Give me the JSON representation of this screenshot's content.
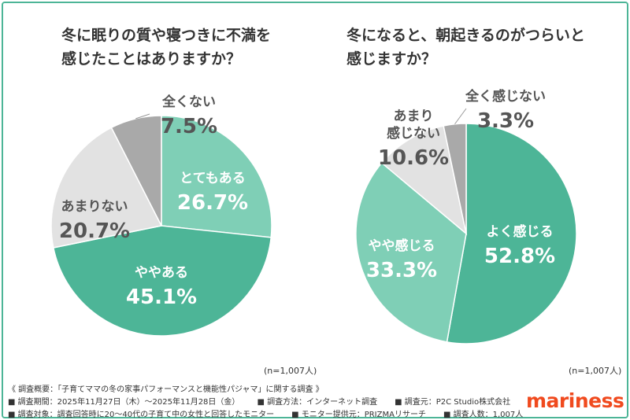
{
  "chart_data": [
    {
      "type": "pie",
      "title_lines": [
        "冬に眠りの質や寝つきに不満を",
        "感じたことはありますか？"
      ],
      "note": "(n=1,007人)",
      "slices": [
        {
          "label": "とてもある",
          "value": 26.7,
          "color": "#7fcfb6"
        },
        {
          "label": "ややある",
          "value": 45.1,
          "color": "#4db597"
        },
        {
          "label": "あまりない",
          "value": 20.7,
          "color": "#e2e2e2"
        },
        {
          "label": "全くない",
          "value": 7.5,
          "color": "#a9a9a9"
        }
      ]
    },
    {
      "type": "pie",
      "title_lines": [
        "冬になると、朝起きるのがつらいと",
        "感じますか？"
      ],
      "note": "(n=1,007人)",
      "slices": [
        {
          "label": "よく感じる",
          "value": 52.8,
          "color": "#4db597"
        },
        {
          "label": "やや感じる",
          "value": 33.3,
          "color": "#7fcfb6"
        },
        {
          "label": "あまり\n感じない",
          "value": 10.6,
          "color": "#e2e2e2"
        },
        {
          "label": "全く感じない",
          "value": 3.3,
          "color": "#a9a9a9"
        }
      ]
    }
  ],
  "footer": {
    "summary": "《 調査概要：「子育てママの冬の家事パフォーマンスと機能性パジャマ」に関する調査 》",
    "line2": [
      "■ 調査期間：2025年11月27日（木）～2025年11月28日（金）",
      "■ 調査方法：インターネット調査",
      "■ 調査元：P2C Studio株式会社"
    ],
    "line3": [
      "■ 調査対象：調査回答時に20～40代の子育て中の女性と回答したモニター",
      "■ モニター提供元：PRIZMAリサーチ",
      "■ 調査人数：1,007人"
    ]
  },
  "logo": "mariness"
}
